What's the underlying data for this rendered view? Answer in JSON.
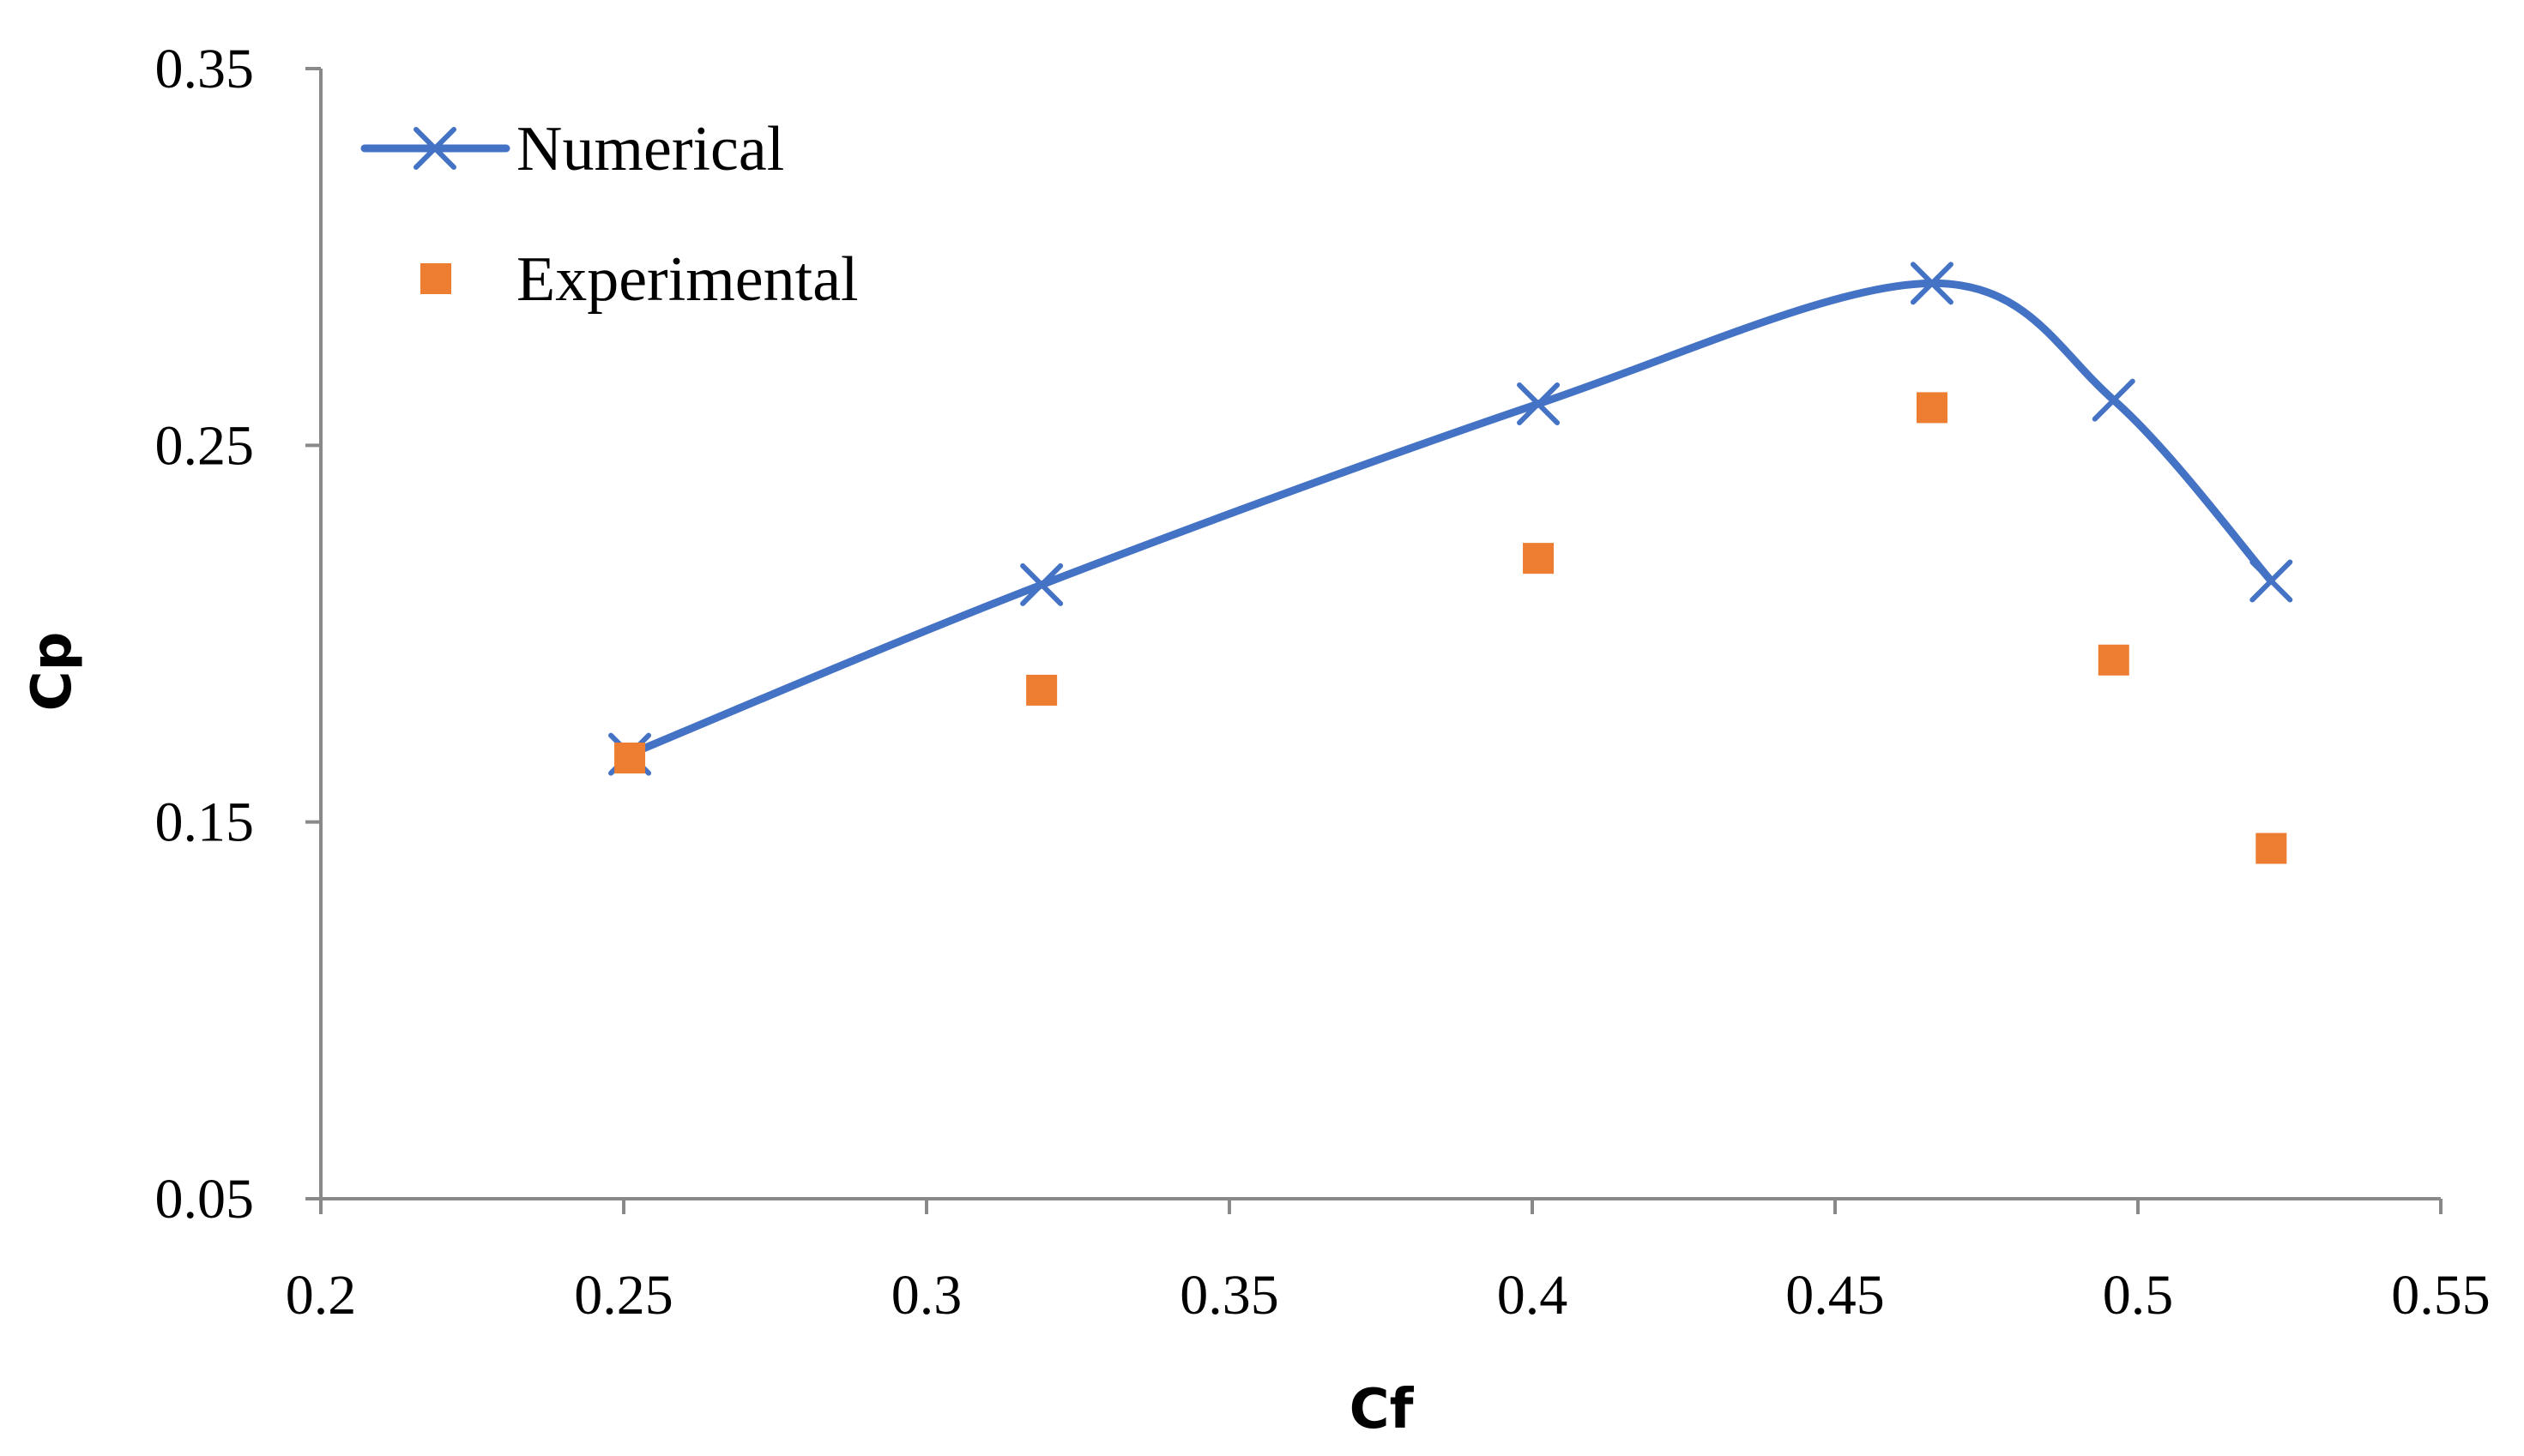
{
  "chart_data": {
    "type": "scatter",
    "title": "",
    "xlabel": "Cf",
    "ylabel": "Cp",
    "xlim": [
      0.2,
      0.55
    ],
    "ylim": [
      0.05,
      0.35
    ],
    "xticks": [
      0.2,
      0.25,
      0.3,
      0.35,
      0.4,
      0.45,
      0.5,
      0.55
    ],
    "xtick_labels": [
      "0.2",
      "0.25",
      "0.3",
      "0.35",
      "0.4",
      "0.45",
      "0.5",
      "0.55"
    ],
    "yticks": [
      0.05,
      0.15,
      0.25,
      0.35
    ],
    "ytick_labels": [
      "0.05",
      "0.15",
      "0.25",
      "0.35"
    ],
    "grid": false,
    "legend_position": "top-left",
    "series": [
      {
        "name": "Numerical",
        "style": "smooth line with x markers",
        "color": "#4472C4",
        "x": [
          0.251,
          0.319,
          0.401,
          0.466,
          0.496,
          0.522
        ],
        "y": [
          0.168,
          0.213,
          0.261,
          0.293,
          0.262,
          0.214
        ]
      },
      {
        "name": "Experimental",
        "style": "square markers",
        "color": "#ED7D31",
        "x": [
          0.251,
          0.319,
          0.401,
          0.466,
          0.496,
          0.522
        ],
        "y": [
          0.167,
          0.185,
          0.22,
          0.26,
          0.193,
          0.143
        ]
      }
    ]
  },
  "colors": {
    "axis": "#898989",
    "numerical": "#4472C4",
    "experimental": "#ED7D31"
  }
}
